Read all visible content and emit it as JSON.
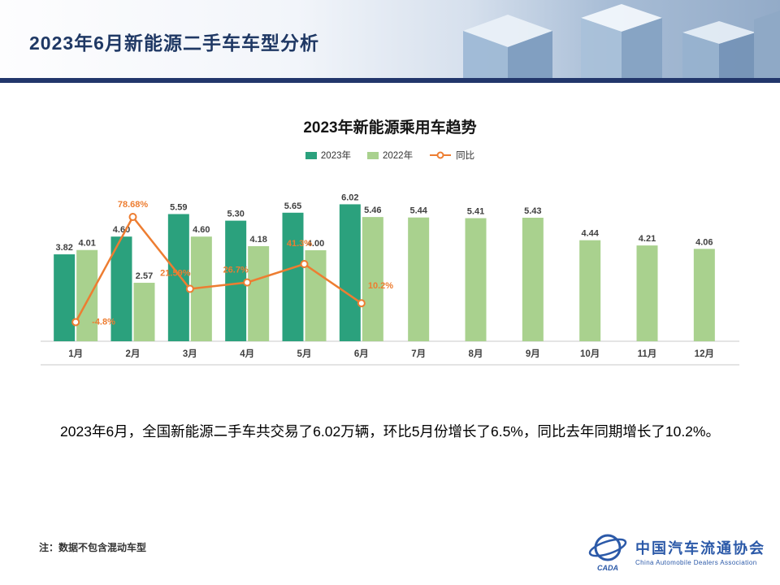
{
  "header": {
    "title": "2023年6月新能源二手车车型分析"
  },
  "chart_data": {
    "type": "bar",
    "title": "2023年新能源乘用车趋势",
    "categories": [
      "1月",
      "2月",
      "3月",
      "4月",
      "5月",
      "6月",
      "7月",
      "8月",
      "9月",
      "10月",
      "11月",
      "12月"
    ],
    "series": [
      {
        "name": "2023年",
        "type": "bar",
        "color": "#2BA17D",
        "values": [
          3.82,
          4.6,
          5.59,
          5.3,
          5.65,
          6.02,
          null,
          null,
          null,
          null,
          null,
          null
        ]
      },
      {
        "name": "2022年",
        "type": "bar",
        "color": "#A9D18E",
        "values": [
          4.01,
          2.57,
          4.6,
          4.18,
          4.0,
          5.46,
          5.44,
          5.41,
          5.43,
          4.44,
          4.21,
          4.06
        ]
      },
      {
        "name": "同比",
        "type": "line",
        "color": "#ED7D31",
        "axis": "secondary",
        "values": [
          -4.8,
          78.68,
          21.59,
          26.7,
          41.3,
          10.2
        ],
        "labels": [
          "-4.8%",
          "78.68%",
          "21.59%",
          "26.7%",
          "41.3%",
          "10.2%"
        ]
      }
    ],
    "ylim": [
      0,
      7
    ],
    "legend_position": "top",
    "grid": false
  },
  "summary": {
    "text": "2023年6月，全国新能源二手车共交易了6.02万辆，环比5月份增长了6.5%，同比去年同期增长了10.2%。"
  },
  "note": {
    "text": "注：数据不包含混动车型"
  },
  "logo": {
    "short": "CADA",
    "name_cn": "中国汽车流通协会",
    "name_en": "China Automobile Dealers Association"
  }
}
